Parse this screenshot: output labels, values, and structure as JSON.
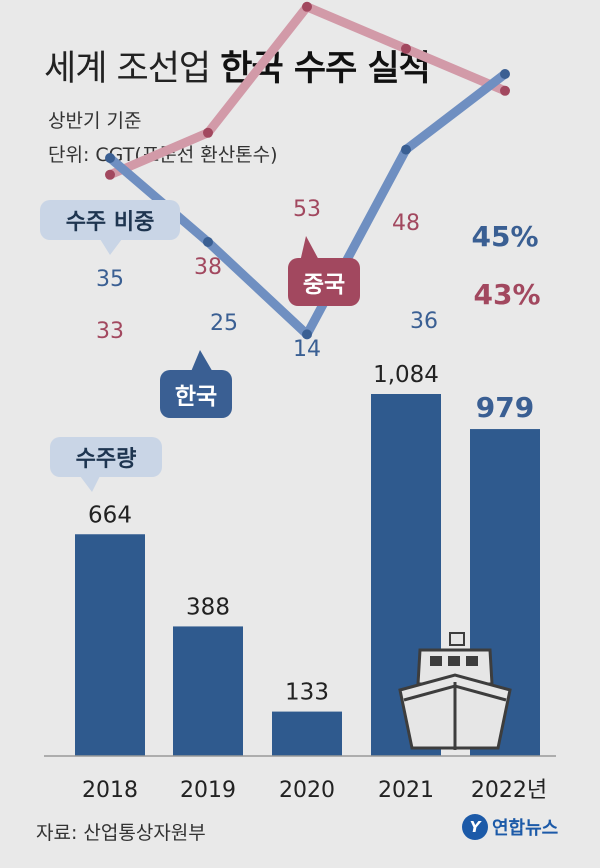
{
  "title": {
    "regular": "세계 조선업",
    "bold": "한국 수주 실적"
  },
  "subtitle": "상반기 기준",
  "unit": "단위: CGT(표준선 환산톤수)",
  "labels": {
    "share": "수주 비중",
    "volume": "수주량",
    "china": "중국",
    "korea": "한국"
  },
  "source": "자료: 산업통상자원부",
  "logo": {
    "mark": "Y",
    "text": "연합뉴스"
  },
  "icons": [
    "ship-icon",
    "yonhap-logo-icon"
  ],
  "colors": {
    "bar": "#2f5a8e",
    "korea_line": "#6f8fc1",
    "korea_dot": "#3a5f93",
    "korea_text": "#3a5f93",
    "china_line": "#d29aa8",
    "china_dot": "#a2485f",
    "china_text": "#a2485f",
    "background": "#e9e9e9"
  },
  "chart_data": {
    "type": "bar+line",
    "categories": [
      "2018",
      "2019",
      "2020",
      "2021",
      "2022년"
    ],
    "bars": {
      "name": "수주량",
      "values": [
        664,
        388,
        133,
        1084,
        979
      ],
      "labels": [
        "664",
        "388",
        "133",
        "1,084",
        "979"
      ]
    },
    "lines": [
      {
        "name": "한국",
        "values": [
          35,
          25,
          14,
          36,
          45
        ],
        "labels": [
          "35",
          "25",
          "14",
          "36",
          "45%"
        ]
      },
      {
        "name": "중국",
        "values": [
          33,
          38,
          53,
          48,
          43
        ],
        "labels": [
          "33",
          "38",
          "53",
          "48",
          "43%"
        ]
      }
    ],
    "highlight_last": true
  }
}
